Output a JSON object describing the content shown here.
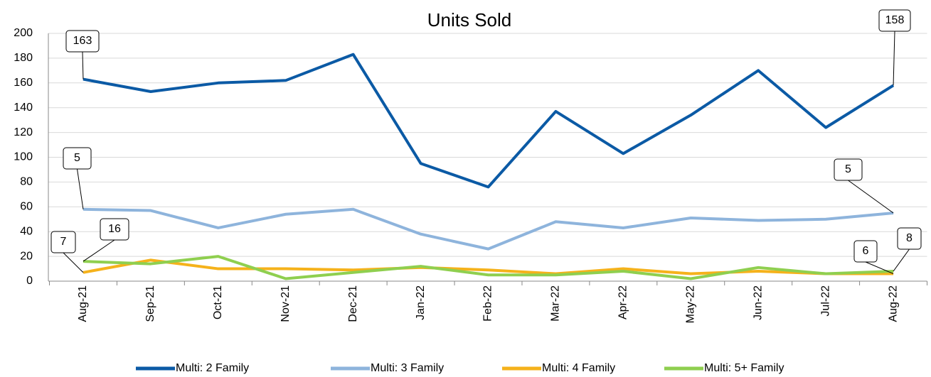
{
  "chart_data": {
    "type": "line",
    "title": "Units Sold",
    "categories": [
      "Aug-21",
      "Sep-21",
      "Oct-21",
      "Nov-21",
      "Dec-21",
      "Jan-22",
      "Feb-22",
      "Mar-22",
      "Apr-22",
      "May-22",
      "Jun-22",
      "Jul-22",
      "Aug-22"
    ],
    "series": [
      {
        "name": "Multi: 2 Family",
        "color": "#0b5aa5",
        "values": [
          163,
          153,
          160,
          162,
          183,
          95,
          76,
          137,
          103,
          134,
          170,
          124,
          158
        ],
        "value_labels": [
          "163",
          null,
          null,
          null,
          null,
          null,
          null,
          null,
          null,
          null,
          null,
          null,
          "158"
        ]
      },
      {
        "name": "Multi: 3 Family",
        "color": "#8eb4dc",
        "values": [
          58,
          57,
          43,
          54,
          58,
          38,
          26,
          48,
          43,
          51,
          49,
          50,
          55
        ]
      },
      {
        "name": "Multi: 4 Family",
        "color": "#f5b21b",
        "values": [
          7,
          17,
          10,
          10,
          9,
          11,
          9,
          6,
          10,
          6,
          8,
          6,
          6
        ],
        "value_labels": [
          "7",
          null,
          null,
          null,
          null,
          null,
          null,
          null,
          null,
          null,
          null,
          null,
          "6"
        ]
      },
      {
        "name": "Multi: 5+ Family",
        "color": "#8fcf4f",
        "values": [
          16,
          14,
          20,
          2,
          7,
          12,
          5,
          5,
          8,
          2,
          11,
          6,
          8
        ],
        "value_labels": [
          "16",
          null,
          null,
          null,
          null,
          null,
          null,
          null,
          null,
          null,
          null,
          null,
          "8"
        ]
      }
    ],
    "annotations": [
      "5",
      "5"
    ],
    "ylim": [
      0,
      200
    ],
    "yticks": [
      0,
      20,
      40,
      60,
      80,
      100,
      120,
      140,
      160,
      180,
      200
    ],
    "grid": true,
    "legend": "bottom"
  }
}
